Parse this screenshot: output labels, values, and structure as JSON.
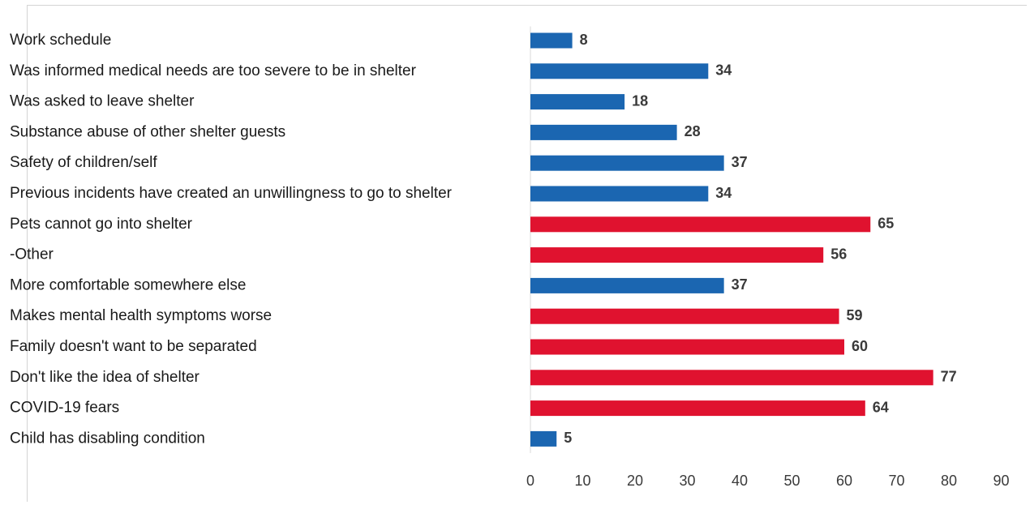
{
  "chart_data": {
    "type": "bar",
    "orientation": "horizontal",
    "title": "",
    "xlabel": "",
    "ylabel": "",
    "xlim": [
      0,
      90
    ],
    "x_ticks": [
      0,
      10,
      20,
      30,
      40,
      50,
      60,
      70,
      80,
      90
    ],
    "grid": false,
    "legend": "none",
    "colors": {
      "blue": "#1b66b1",
      "red": "#e0122f"
    },
    "categories": [
      "Work schedule",
      "Was informed medical needs are too severe to be in shelter",
      "Was asked to leave shelter",
      "Substance abuse of other shelter guests",
      "Safety of children/self",
      "Previous incidents have created an unwillingness to go to shelter",
      "Pets cannot go into shelter",
      "-Other",
      "More comfortable somewhere else",
      "Makes mental health symptoms worse",
      "Family doesn't want to be separated",
      "Don't like the idea of shelter",
      "COVID-19 fears",
      "Child has disabling condition"
    ],
    "values": [
      8,
      34,
      18,
      28,
      37,
      34,
      65,
      56,
      37,
      59,
      60,
      77,
      64,
      5
    ],
    "bar_colors": [
      "blue",
      "blue",
      "blue",
      "blue",
      "blue",
      "blue",
      "red",
      "red",
      "blue",
      "red",
      "red",
      "red",
      "red",
      "blue"
    ]
  }
}
